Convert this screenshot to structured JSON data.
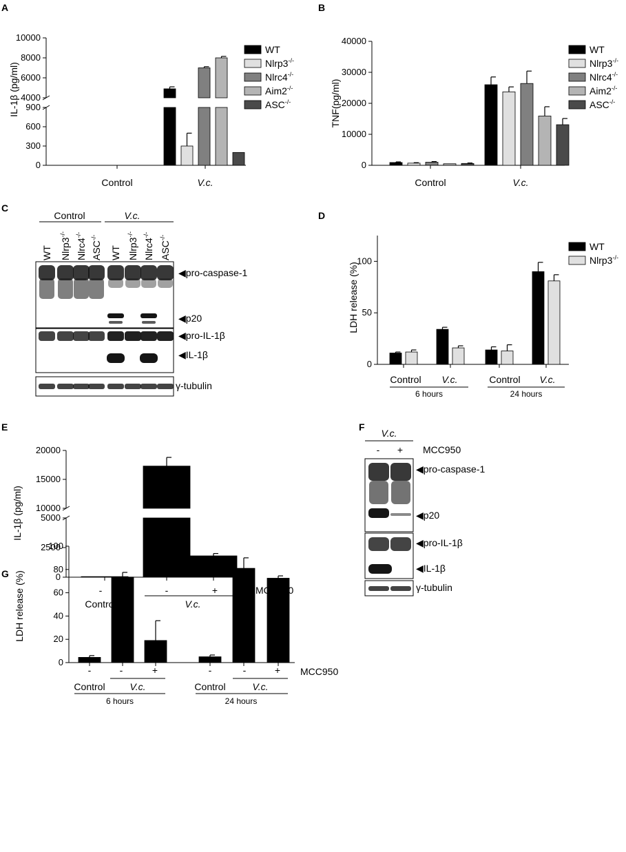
{
  "colors": {
    "wt": "#000000",
    "nlrp3": "#e0e0e0",
    "nlrc4": "#808080",
    "aim2": "#b4b4b4",
    "asc": "#4a4a4a",
    "blot": "#151515"
  },
  "legend_genotypes": [
    {
      "text": "WT",
      "sup": ""
    },
    {
      "text": "Nlrp3",
      "sup": "-/-"
    },
    {
      "text": "Nlrc4",
      "sup": "-/-"
    },
    {
      "text": "Aim2",
      "sup": "-/-"
    },
    {
      "text": "ASC",
      "sup": "-/-"
    }
  ],
  "chart_data": [
    {
      "panel": "A",
      "type": "bar",
      "ylabel": "IL-1β (pg/ml)",
      "categories": [
        "Control",
        "V.c."
      ],
      "y_axis_break": {
        "lower": [
          0,
          900
        ],
        "upper": [
          4000,
          10000
        ]
      },
      "lower_ticks": [
        "0",
        "300",
        "600",
        "900"
      ],
      "upper_ticks": [
        "4000",
        "6000",
        "8000",
        "10000"
      ],
      "series": [
        {
          "name": "WT",
          "values": [
            0,
            4900
          ],
          "errors": [
            0,
            200
          ]
        },
        {
          "name": "Nlrp3-/-",
          "values": [
            0,
            300
          ],
          "errors": [
            0,
            200
          ]
        },
        {
          "name": "Nlrc4-/-",
          "values": [
            0,
            7000
          ],
          "errors": [
            0,
            120
          ]
        },
        {
          "name": "Aim2-/-",
          "values": [
            0,
            8000
          ],
          "errors": [
            0,
            150
          ]
        },
        {
          "name": "ASC-/-",
          "values": [
            0,
            200
          ],
          "errors": [
            0,
            0
          ]
        }
      ]
    },
    {
      "panel": "B",
      "type": "bar",
      "ylabel": "TNF(pg/ml)",
      "categories": [
        "Control",
        "V.c."
      ],
      "ylim": [
        0,
        40000
      ],
      "ticks": [
        "0",
        "10000",
        "20000",
        "30000",
        "40000"
      ],
      "series": [
        {
          "name": "WT",
          "values": [
            900,
            26000
          ],
          "errors": [
            200,
            2500
          ]
        },
        {
          "name": "Nlrp3-/-",
          "values": [
            700,
            23700
          ],
          "errors": [
            150,
            1600
          ]
        },
        {
          "name": "Nlrc4-/-",
          "values": [
            1000,
            26400
          ],
          "errors": [
            200,
            4000
          ]
        },
        {
          "name": "Aim2-/-",
          "values": [
            500,
            15900
          ],
          "errors": [
            100,
            3000
          ]
        },
        {
          "name": "ASC-/-",
          "values": [
            600,
            13100
          ],
          "errors": [
            150,
            2000
          ]
        }
      ]
    },
    {
      "panel": "D",
      "type": "bar",
      "ylabel": "LDH release (%)",
      "ylim": [
        0,
        125
      ],
      "ticks": [
        "0",
        "50",
        "100"
      ],
      "categories": [
        "Control",
        "V.c.",
        "Control",
        "V.c."
      ],
      "groups": [
        "6 hours",
        "24 hours"
      ],
      "series": [
        {
          "name": "WT",
          "values": [
            11,
            34,
            14,
            90
          ],
          "errors": [
            1,
            2,
            3,
            9
          ]
        },
        {
          "name": "Nlrp3-/-",
          "values": [
            12,
            16,
            13,
            81
          ],
          "errors": [
            2,
            2,
            6,
            6
          ]
        }
      ]
    },
    {
      "panel": "E",
      "type": "bar",
      "ylabel": "IL-1β (pg/ml)",
      "y_axis_break": {
        "lower": [
          0,
          5000
        ],
        "upper": [
          10000,
          20000
        ]
      },
      "lower_ticks": [
        "0",
        "2500",
        "5000"
      ],
      "upper_ticks": [
        "10000",
        "15000",
        "20000"
      ],
      "categories": [
        "-",
        "-",
        "+"
      ],
      "treatment_label": "MCC950",
      "group_labels": [
        "Control",
        "V.c."
      ],
      "values": [
        50,
        17300,
        1800
      ],
      "errors": [
        0,
        1500,
        200
      ]
    },
    {
      "panel": "G",
      "type": "bar",
      "ylabel": "LDH release (%)",
      "ylim": [
        0,
        100
      ],
      "ticks": [
        "0",
        "20",
        "40",
        "60",
        "80",
        "100"
      ],
      "categories": [
        "-",
        "-",
        "+",
        "-",
        "-",
        "+"
      ],
      "treatment_label": "MCC950",
      "group_labels": [
        "Control",
        "V.c.",
        "Control",
        "V.c."
      ],
      "time_labels": [
        "6 hours",
        "24 hours"
      ],
      "values": [
        4.5,
        73.5,
        19,
        5,
        81,
        72.5
      ],
      "errors": [
        1.5,
        4,
        17,
        1.5,
        9,
        2
      ]
    }
  ],
  "blots": {
    "C": {
      "control_label": "Control",
      "vc_label": "V.c.",
      "lanes": [
        {
          "text": "WT",
          "sup": ""
        },
        {
          "text": "Nlrp3",
          "sup": "-/-"
        },
        {
          "text": "Nlrc4",
          "sup": "-/-"
        },
        {
          "text": "ASC",
          "sup": "-/-"
        },
        {
          "text": "WT",
          "sup": ""
        },
        {
          "text": "Nlrp3",
          "sup": "-/-"
        },
        {
          "text": "Nlrc4",
          "sup": "-/-"
        },
        {
          "text": "ASC",
          "sup": "-/-"
        }
      ],
      "bands": [
        "pro-caspase-1",
        "p20",
        "pro-IL-1β",
        "IL-1β",
        "γ-tubulin"
      ]
    },
    "F": {
      "vc_label": "V.c.",
      "lanes": [
        "-",
        "+"
      ],
      "treatment": "MCC950",
      "bands": [
        "pro-caspase-1",
        "p20",
        "pro-IL-1β",
        "IL-1β",
        "γ-tubulin"
      ]
    }
  },
  "panel_letters": [
    "A",
    "B",
    "C",
    "D",
    "E",
    "F",
    "G"
  ]
}
